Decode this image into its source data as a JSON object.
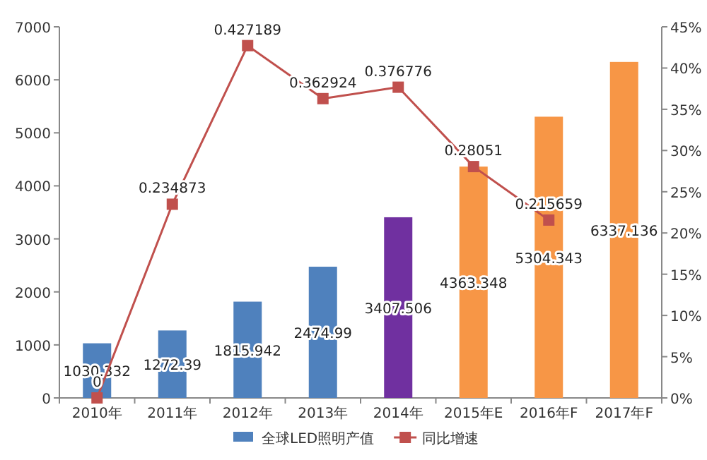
{
  "chart_data": {
    "type": "bar",
    "categories": [
      "2010年",
      "2011年",
      "2012年",
      "2013年",
      "2014年",
      "2015年E",
      "2016年F",
      "2017年F"
    ],
    "series": [
      {
        "name": "全球LED照明产值",
        "color": "#4f81bd",
        "colors": [
          "#4f81bd",
          "#4f81bd",
          "#4f81bd",
          "#4f81bd",
          "#7030a0",
          "#f79646",
          "#f79646",
          "#f79646"
        ],
        "values": [
          1030.332,
          1272.39,
          1815.942,
          2474.99,
          3407.506,
          4363.348,
          5304.343,
          6337.136
        ]
      },
      {
        "name": "同比增速",
        "type": "line",
        "axis": "y2",
        "color": "#c0504d",
        "values": [
          0,
          0.234873,
          0.427189,
          0.362924,
          0.376776,
          0.28051,
          0.215659,
          null
        ]
      }
    ],
    "ylim": [
      0,
      7000
    ],
    "yticks": [
      0,
      1000,
      2000,
      3000,
      4000,
      5000,
      6000,
      7000
    ],
    "y2lim": [
      0,
      0.45
    ],
    "y2ticks": [
      {
        "value": 0,
        "label": "0%"
      },
      {
        "value": 0.05,
        "label": "5%"
      },
      {
        "value": 0.1,
        "label": "10%"
      },
      {
        "value": 0.15,
        "label": "15%"
      },
      {
        "value": 0.2,
        "label": "20%"
      },
      {
        "value": 0.25,
        "label": "25%"
      },
      {
        "value": 0.3,
        "label": "30%"
      },
      {
        "value": 0.35,
        "label": "35%"
      },
      {
        "value": 0.4,
        "label": "40%"
      },
      {
        "value": 0.45,
        "label": "45%"
      }
    ],
    "data_labels": true,
    "legend": "bottom",
    "marker": "square",
    "line_style": "solid",
    "grid": false
  }
}
